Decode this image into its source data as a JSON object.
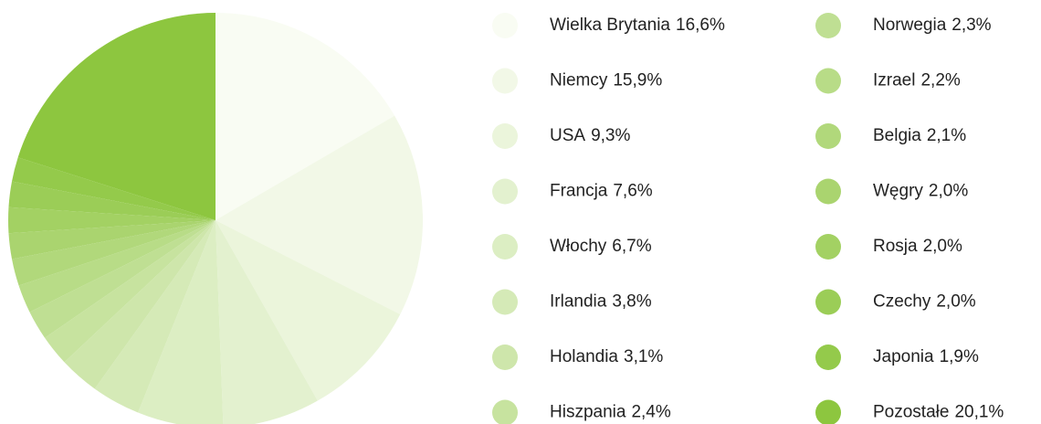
{
  "chart_data": {
    "type": "pie",
    "categories": [
      "Wielka Brytania",
      "Niemcy",
      "USA",
      "Francja",
      "Włochy",
      "Irlandia",
      "Holandia",
      "Hiszpania",
      "Norwegia",
      "Izrael",
      "Belgia",
      "Węgry",
      "Rosja",
      "Czechy",
      "Japonia",
      "Pozostałe"
    ],
    "values": [
      16.6,
      15.9,
      9.3,
      7.6,
      6.7,
      3.8,
      3.1,
      2.4,
      2.3,
      2.2,
      2.1,
      2.0,
      2.0,
      2.0,
      1.9,
      20.1
    ],
    "value_labels": [
      "16,6%",
      "15,9%",
      "9,3%",
      "7,6%",
      "6,7%",
      "3,8%",
      "3,1%",
      "2,4%",
      "2,3%",
      "2,2%",
      "2,1%",
      "2,0%",
      "2,0%",
      "2,0%",
      "1,9%",
      "20,1%"
    ],
    "colors": [
      "#f9fcf3",
      "#f2f8e7",
      "#ebf5db",
      "#e3f1cf",
      "#dceec3",
      "#d5eab7",
      "#cee6ab",
      "#c7e39f",
      "#bfdf93",
      "#b8dc87",
      "#b1d87b",
      "#aad46f",
      "#a3d163",
      "#9bcd57",
      "#94ca4b",
      "#8dc63f"
    ],
    "legend": "right"
  }
}
